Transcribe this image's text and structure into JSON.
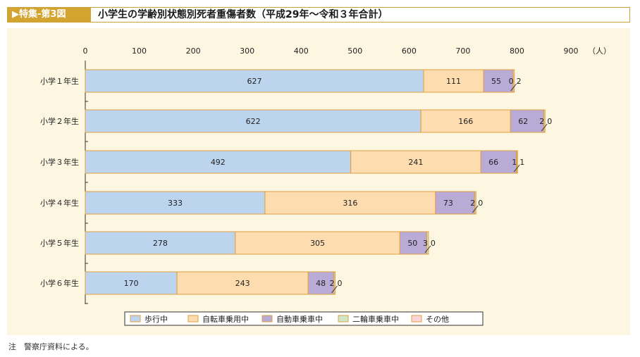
{
  "header": {
    "label": "▶特集-第3図",
    "title": "小学生の学齢別状態別死者重傷者数（平成29年～令和３年合計）"
  },
  "note": "注　警察庁資料による。",
  "colors": {
    "header_gold": "#d4a431",
    "panel_bg": "#fdf6e1",
    "bar_border": "#e0a040"
  },
  "chart_data": {
    "type": "bar",
    "orientation": "horizontal",
    "stacked": true,
    "title": "",
    "xlabel": "",
    "unit_label": "（人）",
    "xlim": [
      0,
      900
    ],
    "xticks": [
      "0",
      "100",
      "200",
      "300",
      "400",
      "500",
      "600",
      "700",
      "800",
      "900"
    ],
    "categories": [
      "小学１年生",
      "小学２年生",
      "小学３年生",
      "小学４年生",
      "小学５年生",
      "小学６年生"
    ],
    "series": [
      {
        "name": "歩行中",
        "color": "#bcd4ee",
        "values": [
          627,
          622,
          492,
          333,
          278,
          170
        ]
      },
      {
        "name": "自転車乗用中",
        "color": "#fddcb0",
        "values": [
          111,
          166,
          241,
          316,
          305,
          243
        ]
      },
      {
        "name": "自動車乗車中",
        "color": "#b9aad6",
        "values": [
          55,
          62,
          66,
          73,
          50,
          48
        ]
      },
      {
        "name": "二輪車乗車中",
        "color": "#cfe6c4",
        "values": [
          0,
          2,
          1,
          2,
          3,
          2
        ]
      },
      {
        "name": "その他",
        "color": "#fcd6d6",
        "values": [
          2,
          0,
          1,
          0,
          0,
          0
        ]
      }
    ],
    "grid": false,
    "legend_position": "bottom"
  }
}
